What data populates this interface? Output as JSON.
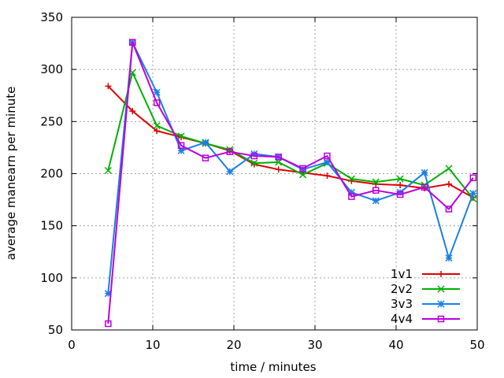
{
  "chart_data": {
    "type": "line",
    "xlabel": "time / minutes",
    "ylabel": "average manearn per minute",
    "xlim": [
      0,
      50
    ],
    "ylim": [
      50,
      350
    ],
    "xticks": [
      "0",
      "10",
      "20",
      "30",
      "40",
      "50"
    ],
    "yticks": [
      "50",
      "100",
      "150",
      "200",
      "250",
      "300",
      "350"
    ],
    "grid": true,
    "legend_position": "bottom-right",
    "x": [
      4.5,
      7.5,
      10.5,
      13.5,
      16.5,
      19.5,
      22.5,
      25.5,
      28.5,
      31.5,
      34.5,
      37.5,
      40.5,
      43.5,
      46.5,
      49.5
    ],
    "series": [
      {
        "name": "1v1",
        "color": "#dd0000",
        "marker": "plus",
        "values": [
          284,
          260,
          241,
          235,
          229,
          222,
          209,
          204,
          201,
          198,
          193,
          190,
          189,
          186,
          190,
          177
        ]
      },
      {
        "name": "2v2",
        "color": "#00b000",
        "marker": "cross",
        "values": [
          203,
          297,
          246,
          236,
          229,
          223,
          210,
          211,
          199,
          210,
          195,
          192,
          195,
          189,
          205,
          176
        ]
      },
      {
        "name": "3v3",
        "color": "#1a7fe6",
        "marker": "star",
        "values": [
          85,
          326,
          278,
          222,
          230,
          202,
          219,
          216,
          204,
          211,
          182,
          174,
          182,
          201,
          119,
          181
        ]
      },
      {
        "name": "4v4",
        "color": "#bb00dd",
        "marker": "square",
        "values": [
          56,
          326,
          268,
          227,
          215,
          221,
          217,
          216,
          205,
          217,
          178,
          184,
          180,
          187,
          166,
          196
        ]
      }
    ]
  }
}
